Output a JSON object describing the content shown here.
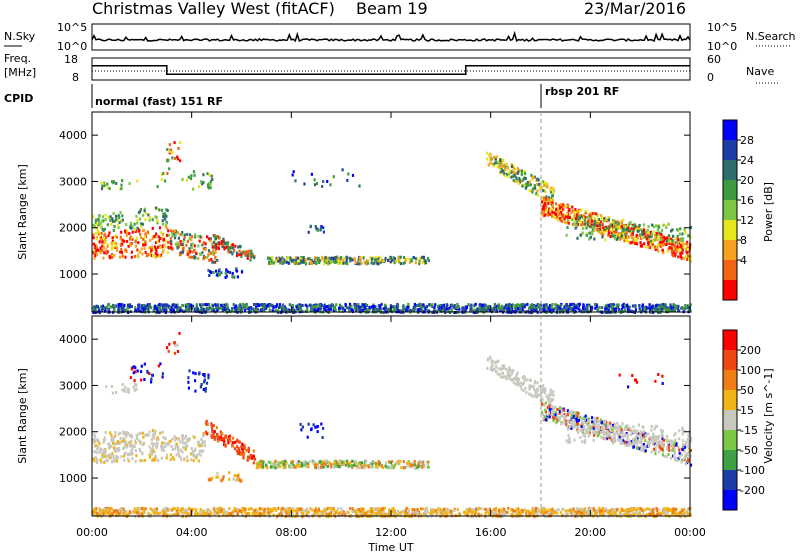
{
  "header": {
    "station": "Christmas Valley West (fitACF)",
    "beam": "Beam 19",
    "date": "23/Mar/2016"
  },
  "sky_panel": {
    "label": "N.Sky",
    "right_label": "N.Search",
    "left_ticks": [
      "10^5",
      "10^0"
    ],
    "right_ticks": [
      "10^5",
      "10^0"
    ]
  },
  "freq_panel": {
    "label_line1": "Freq.",
    "label_line2": "[MHz]",
    "left_ticks": [
      "18",
      "8"
    ],
    "right_ticks": [
      "60",
      "0"
    ],
    "right_label": "Nave"
  },
  "cpid": {
    "label": "CPID",
    "segments": [
      {
        "name": "normal (fast) 151 RF",
        "start_hour": 0
      },
      {
        "name": "rbsp 201 RF",
        "start_hour": 18
      }
    ]
  },
  "time_axis": {
    "label": "Time UT",
    "ticks": [
      "00:00",
      "04:00",
      "08:00",
      "12:00",
      "16:00",
      "20:00",
      "00:00"
    ]
  },
  "colors": {
    "power_scale": [
      "#0000ff",
      "#1c3ca8",
      "#2f6e6e",
      "#3f9a3f",
      "#7cc846",
      "#e6e61e",
      "#f5a31e",
      "#f06414",
      "#ff0000"
    ],
    "velocity_scale": [
      "#ff0000",
      "#f04614",
      "#f07d14",
      "#f0b414",
      "#c8c8be",
      "#7ac846",
      "#3fa046",
      "#1c3ca8",
      "#0000ff"
    ]
  },
  "chart_data": [
    {
      "type": "line",
      "title": "N.Sky",
      "x_range_hours": [
        0,
        24
      ],
      "y_scale": "log",
      "ylim": [
        "10^0",
        "10^5"
      ]
    },
    {
      "type": "line",
      "title": "Freq. [MHz]",
      "ylim": [
        8,
        18
      ],
      "x_hours": [
        0,
        3,
        3,
        15,
        15,
        24
      ],
      "freq_mhz": [
        14.5,
        14.5,
        10.6,
        10.6,
        14.5,
        14.5
      ],
      "nave_ylim": [
        0,
        60
      ]
    },
    {
      "type": "heatmap",
      "name": "Power",
      "ylabel": "Slant Range [km]",
      "yticks": [
        1000,
        2000,
        3000,
        4000
      ],
      "ylim": [
        180,
        4500
      ],
      "xlim_hours": [
        0,
        24
      ],
      "colorbar": {
        "label": "Power [dB]",
        "ticks": [
          4,
          8,
          12,
          16,
          20,
          24,
          28
        ]
      }
    },
    {
      "type": "heatmap",
      "name": "Velocity",
      "ylabel": "Slant Range [km]",
      "yticks": [
        1000,
        2000,
        3000,
        4000
      ],
      "ylim": [
        180,
        4500
      ],
      "xlim_hours": [
        0,
        24
      ],
      "colorbar": {
        "label": "Velocity [m s^-1]",
        "ticks": [
          200,
          100,
          50,
          15,
          -15,
          -50,
          -100,
          -200
        ]
      }
    }
  ]
}
